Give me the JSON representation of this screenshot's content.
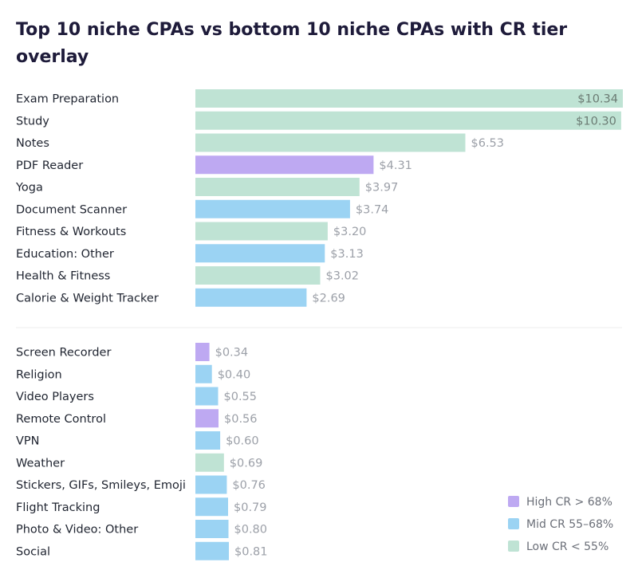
{
  "chart_data": {
    "type": "bar",
    "orientation": "horizontal",
    "title_lines": [
      "Top 10 niche CPAs vs bottom 10 niche CPAs with CR tier",
      "overlay"
    ],
    "xlim": [
      0,
      10.34
    ],
    "value_prefix": "$",
    "groups": [
      {
        "name": "top",
        "bars": [
          {
            "category": "Exam Preparation",
            "value": 10.34,
            "label": "$10.34",
            "tier": "low"
          },
          {
            "category": "Study",
            "value": 10.3,
            "label": "$10.30",
            "tier": "low"
          },
          {
            "category": "Notes",
            "value": 6.53,
            "label": "$6.53",
            "tier": "low"
          },
          {
            "category": "PDF Reader",
            "value": 4.31,
            "label": "$4.31",
            "tier": "high"
          },
          {
            "category": "Yoga",
            "value": 3.97,
            "label": "$3.97",
            "tier": "low"
          },
          {
            "category": "Document Scanner",
            "value": 3.74,
            "label": "$3.74",
            "tier": "mid"
          },
          {
            "category": "Fitness & Workouts",
            "value": 3.2,
            "label": "$3.20",
            "tier": "low"
          },
          {
            "category": "Education: Other",
            "value": 3.13,
            "label": "$3.13",
            "tier": "mid"
          },
          {
            "category": "Health & Fitness",
            "value": 3.02,
            "label": "$3.02",
            "tier": "low"
          },
          {
            "category": "Calorie & Weight Tracker",
            "value": 2.69,
            "label": "$2.69",
            "tier": "mid"
          }
        ]
      },
      {
        "name": "bottom",
        "bars": [
          {
            "category": "Screen Recorder",
            "value": 0.34,
            "label": "$0.34",
            "tier": "high"
          },
          {
            "category": "Religion",
            "value": 0.4,
            "label": "$0.40",
            "tier": "mid"
          },
          {
            "category": "Video Players",
            "value": 0.55,
            "label": "$0.55",
            "tier": "mid"
          },
          {
            "category": "Remote Control",
            "value": 0.56,
            "label": "$0.56",
            "tier": "high"
          },
          {
            "category": "VPN",
            "value": 0.6,
            "label": "$0.60",
            "tier": "mid"
          },
          {
            "category": "Weather",
            "value": 0.69,
            "label": "$0.69",
            "tier": "low"
          },
          {
            "category": "Stickers, GIFs, Smileys, Emoji",
            "value": 0.76,
            "label": "$0.76",
            "tier": "mid"
          },
          {
            "category": "Flight Tracking",
            "value": 0.79,
            "label": "$0.79",
            "tier": "mid"
          },
          {
            "category": "Photo & Video: Other",
            "value": 0.8,
            "label": "$0.80",
            "tier": "mid"
          },
          {
            "category": "Social",
            "value": 0.81,
            "label": "$0.81",
            "tier": "mid"
          }
        ]
      }
    ],
    "legend": {
      "placement": "bottom-right",
      "items": [
        {
          "tier": "high",
          "label": "High CR > 68%"
        },
        {
          "tier": "mid",
          "label": "Mid CR 55–68%"
        },
        {
          "tier": "low",
          "label": "Low CR < 55%"
        }
      ]
    },
    "tier_colors": {
      "high": "#bea9f2",
      "mid": "#9bd3f3",
      "low": "#bfe3d4"
    },
    "grid": false
  }
}
